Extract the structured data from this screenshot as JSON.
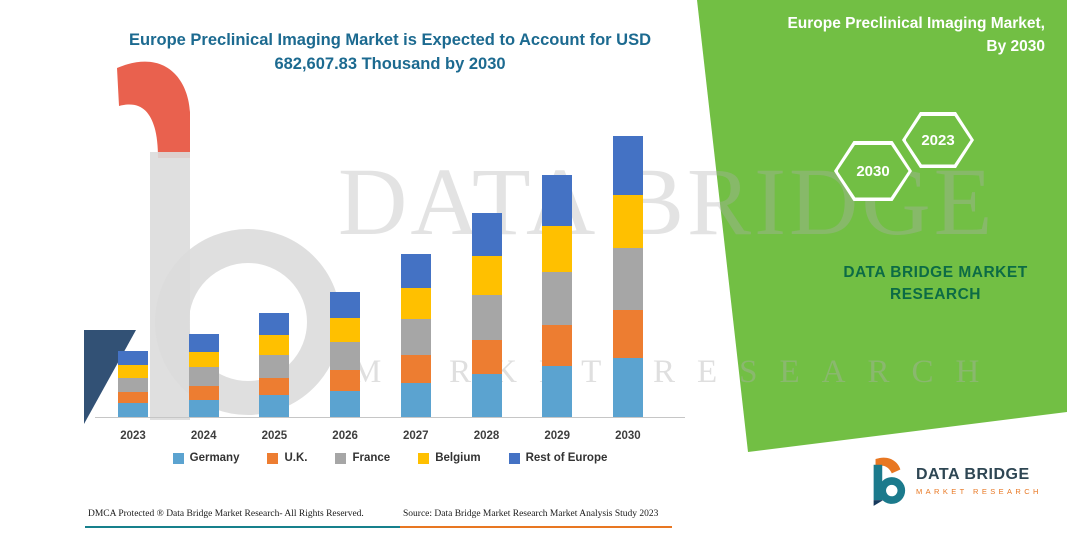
{
  "header": {
    "title": "Europe Preclinical Imaging Market is Expected to Account for USD 682,607.83 Thousand by 2030"
  },
  "panel": {
    "title_line1": "Europe Preclinical Imaging Market,",
    "title_line2": "By 2030",
    "hexagons": [
      {
        "label": "2030"
      },
      {
        "label": "2023"
      }
    ],
    "brand": "DATA BRIDGE MARKET RESEARCH",
    "band_color": "#72BF44"
  },
  "watermark": {
    "line1": "DATA BRIDGE",
    "line2": "MARKET RESEARCH"
  },
  "chart_data": {
    "type": "bar",
    "stacked": true,
    "title": "Europe Preclinical Imaging Market is Expected to Account for USD 682,607.83 Thousand by 2030",
    "xlabel": "",
    "ylabel": "",
    "value_unit": "USD Thousand",
    "ylim": [
      0,
      700000
    ],
    "grid": false,
    "legend_position": "bottom",
    "categories": [
      "2023",
      "2024",
      "2025",
      "2026",
      "2027",
      "2028",
      "2029",
      "2030"
    ],
    "totals": [
      160000,
      201500,
      252600,
      303600,
      396000,
      495600,
      587900,
      682607.83
    ],
    "series": [
      {
        "name": "Germany",
        "color": "#5BA3D0",
        "values": [
          33600,
          42315,
          53046,
          63756,
          83160,
          104076,
          123459,
          143348
        ]
      },
      {
        "name": "U.K.",
        "color": "#ED7D31",
        "values": [
          27200,
          34255,
          42942,
          51612,
          67320,
          84252,
          99943,
          116043
        ]
      },
      {
        "name": "France",
        "color": "#A6A6A6",
        "values": [
          35200,
          44330,
          55572,
          66792,
          87120,
          109032,
          129338,
          150174
        ]
      },
      {
        "name": "Belgium",
        "color": "#FFC000",
        "values": [
          30400,
          38285,
          47994,
          57684,
          75240,
          94164,
          111701,
          129696
        ]
      },
      {
        "name": "Rest of Europe",
        "color": "#4472C4",
        "values": [
          33600,
          42315,
          53046,
          63756,
          83160,
          104076,
          123459,
          143346.83
        ]
      }
    ]
  },
  "footer": {
    "dmca": "DMCA Protected ® Data Bridge Market Research- All Rights Reserved.",
    "source": "Source: Data Bridge Market Research Market Analysis Study 2023"
  },
  "logo": {
    "name": "DATA BRIDGE",
    "sub": "MARKET RESEARCH"
  },
  "colors": {
    "band_green": "#72BF44",
    "brand_teal": "#1B7A8C",
    "brand_orange": "#E87722",
    "brand_navy": "#16395C",
    "title_blue": "#1C6A90"
  }
}
